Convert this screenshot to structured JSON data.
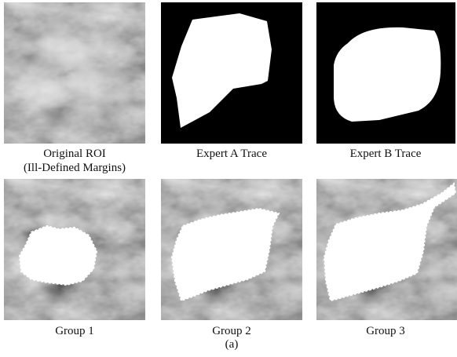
{
  "panels": [
    {
      "caption": [
        "Original ROI",
        "(Ill-Defined Margins)"
      ]
    },
    {
      "caption": [
        "Expert A Trace"
      ]
    },
    {
      "caption": [
        "Expert B Trace"
      ]
    },
    {
      "caption": [
        "Group 1"
      ]
    },
    {
      "caption": [
        "Group 2"
      ]
    },
    {
      "caption": [
        "Group 3"
      ]
    }
  ],
  "label": "(a)"
}
